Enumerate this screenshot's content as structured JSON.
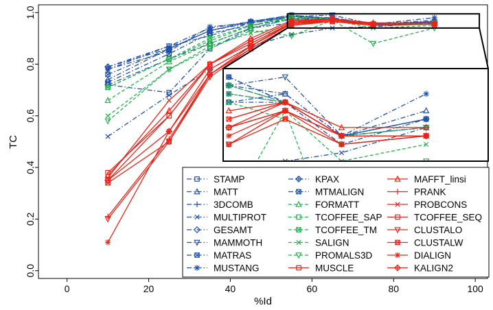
{
  "chart_data": {
    "type": "line",
    "xlabel": "%Id",
    "ylabel": "TC",
    "xlim": [
      -7,
      103
    ],
    "ylim": [
      -0.03,
      1.03
    ],
    "xticks": [
      0,
      20,
      40,
      60,
      80,
      100
    ],
    "yticks": [
      0.0,
      0.2,
      0.4,
      0.6,
      0.8,
      1.0
    ],
    "x": [
      10,
      25,
      35,
      45,
      55,
      65,
      75,
      90
    ],
    "grid": false,
    "legend_position": "bottom-right",
    "legend_columns": 3,
    "inset": {
      "type": "zoom",
      "source_xlim": [
        54,
        101
      ],
      "source_ylim": [
        0.94,
        0.995
      ],
      "placement": "center-right"
    },
    "colors": {
      "blue": "#1f4fa8",
      "green": "#22b14c",
      "red": "#e8241a"
    },
    "series": [
      {
        "name": "STAMP",
        "color": "#1f4fa8",
        "dash": "dashdot",
        "marker": "square",
        "values": [
          0.72,
          0.69,
          0.86,
          0.94,
          0.975,
          0.98,
          0.955,
          0.965
        ]
      },
      {
        "name": "MATT",
        "color": "#1f4fa8",
        "dash": "dashdot",
        "marker": "triangle-up",
        "values": [
          0.74,
          0.86,
          0.93,
          0.965,
          0.985,
          0.98,
          0.955,
          0.97
        ]
      },
      {
        "name": "3DCOMB",
        "color": "#1f4fa8",
        "dash": "dashdot",
        "marker": "plus",
        "values": [
          0.79,
          0.87,
          0.94,
          0.965,
          0.99,
          0.975,
          0.95,
          0.965
        ]
      },
      {
        "name": "MULTIPROT",
        "color": "#1f4fa8",
        "dash": "dashdot",
        "marker": "x",
        "values": [
          0.52,
          0.68,
          0.78,
          0.87,
          0.915,
          0.94,
          0.945,
          0.96
        ]
      },
      {
        "name": "GESAMT",
        "color": "#1f4fa8",
        "dash": "dashdot",
        "marker": "diamond",
        "values": [
          0.72,
          0.82,
          0.88,
          0.94,
          0.96,
          0.97,
          0.955,
          0.96
        ]
      },
      {
        "name": "MAMMOTH",
        "color": "#1f4fa8",
        "dash": "dashdot",
        "marker": "triangle-down",
        "values": [
          0.78,
          0.87,
          0.91,
          0.96,
          0.985,
          0.99,
          0.955,
          0.96
        ]
      },
      {
        "name": "MATRAS",
        "color": "#1f4fa8",
        "dash": "dashdot",
        "marker": "square-x",
        "values": [
          0.73,
          0.84,
          0.92,
          0.95,
          0.975,
          0.975,
          0.955,
          0.965
        ]
      },
      {
        "name": "MUSTANG",
        "color": "#1f4fa8",
        "dash": "dashdot",
        "marker": "asterisk",
        "values": [
          0.78,
          0.85,
          0.945,
          0.96,
          0.98,
          0.975,
          0.955,
          0.98
        ]
      },
      {
        "name": "KPAX",
        "color": "#1f4fa8",
        "dash": "dashdot",
        "marker": "diamond-plus",
        "values": [
          0.79,
          0.86,
          0.93,
          0.96,
          0.985,
          0.975,
          0.955,
          0.965
        ]
      },
      {
        "name": "MTMALIGN",
        "color": "#1f4fa8",
        "dash": "dashdot",
        "marker": "square-x",
        "values": [
          0.76,
          0.86,
          0.93,
          0.965,
          0.99,
          0.975,
          0.955,
          0.965
        ]
      },
      {
        "name": "FORMATT",
        "color": "#22b14c",
        "dash": "dashed",
        "marker": "triangle-up",
        "values": [
          0.66,
          0.81,
          0.88,
          0.94,
          0.975,
          0.965,
          0.95,
          0.955
        ]
      },
      {
        "name": "TCOFFEE_SAP",
        "color": "#22b14c",
        "dash": "dashed",
        "marker": "square",
        "values": [
          0.71,
          0.82,
          0.89,
          0.95,
          0.98,
          0.975,
          0.955,
          0.955
        ]
      },
      {
        "name": "TCOFFEE_TM",
        "color": "#22b14c",
        "dash": "dashed",
        "marker": "square-x",
        "values": [
          0.71,
          0.82,
          0.9,
          0.95,
          0.985,
          0.975,
          0.955,
          0.96
        ]
      },
      {
        "name": "SALIGN",
        "color": "#22b14c",
        "dash": "dashed",
        "marker": "x",
        "values": [
          0.6,
          0.78,
          0.87,
          0.92,
          0.95,
          0.97,
          0.94,
          0.95
        ]
      },
      {
        "name": "PROMALS3D",
        "color": "#22b14c",
        "dash": "dashed",
        "marker": "triangle-down",
        "values": [
          0.58,
          0.78,
          0.86,
          0.93,
          0.91,
          0.97,
          0.88,
          0.94
        ]
      },
      {
        "name": "MUSCLE",
        "color": "#e8241a",
        "dash": "solid",
        "marker": "square",
        "values": [
          0.38,
          0.6,
          0.8,
          0.88,
          0.96,
          0.97,
          0.955,
          0.955
        ]
      },
      {
        "name": "MAFFT_linsi",
        "color": "#e8241a",
        "dash": "solid",
        "marker": "triangle-up",
        "values": [
          0.37,
          0.62,
          0.8,
          0.9,
          0.97,
          0.975,
          0.96,
          0.96
        ]
      },
      {
        "name": "PRANK",
        "color": "#e8241a",
        "dash": "solid",
        "marker": "plus",
        "values": [
          0.21,
          0.51,
          0.76,
          0.87,
          0.96,
          0.97,
          0.955,
          0.955
        ]
      },
      {
        "name": "PROBCONS",
        "color": "#e8241a",
        "dash": "solid",
        "marker": "x",
        "values": [
          0.36,
          0.66,
          0.8,
          0.89,
          0.965,
          0.975,
          0.955,
          0.955
        ]
      },
      {
        "name": "TCOFFEE_SEQ",
        "color": "#e8241a",
        "dash": "solid",
        "marker": "square",
        "values": [
          0.35,
          0.6,
          0.8,
          0.89,
          0.965,
          0.975,
          0.955,
          0.955
        ]
      },
      {
        "name": "CLUSTALO",
        "color": "#e8241a",
        "dash": "solid",
        "marker": "triangle-down",
        "values": [
          0.2,
          0.5,
          0.75,
          0.86,
          0.95,
          0.97,
          0.95,
          0.955
        ]
      },
      {
        "name": "CLUSTALW",
        "color": "#e8241a",
        "dash": "solid",
        "marker": "square-x",
        "values": [
          0.34,
          0.5,
          0.76,
          0.86,
          0.95,
          0.965,
          0.95,
          0.955
        ]
      },
      {
        "name": "DIALIGN",
        "color": "#e8241a",
        "dash": "solid",
        "marker": "asterisk",
        "values": [
          0.11,
          0.54,
          0.76,
          0.87,
          0.955,
          0.97,
          0.955,
          0.955
        ]
      },
      {
        "name": "KALIGN2",
        "color": "#e8241a",
        "dash": "solid",
        "marker": "diamond-plus",
        "values": [
          0.35,
          0.54,
          0.78,
          0.87,
          0.96,
          0.975,
          0.955,
          0.955
        ]
      }
    ]
  }
}
